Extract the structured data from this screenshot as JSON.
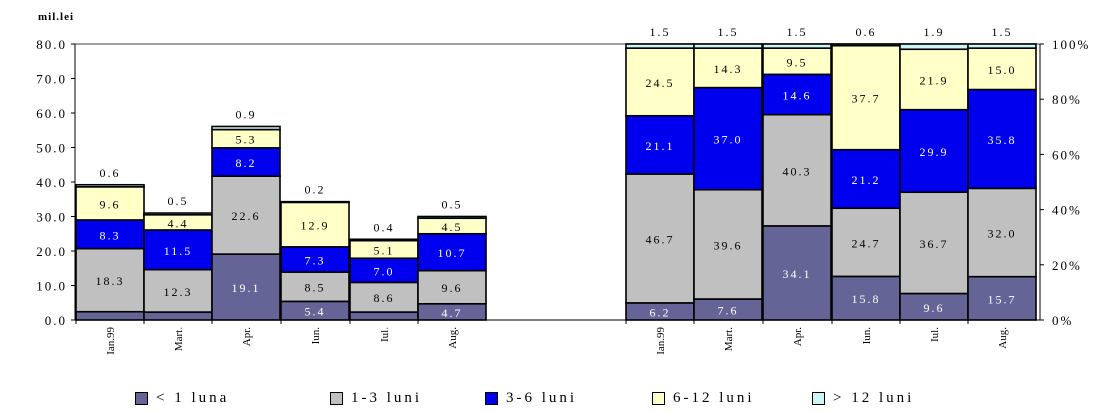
{
  "chart_data": [
    {
      "type": "bar",
      "stacked": true,
      "unit_label": "mil.lei",
      "categories": [
        "Ian.99",
        "Mart.",
        "Apr.",
        "Iun.",
        "Iul.",
        "Aug."
      ],
      "ylim": [
        0,
        80
      ],
      "yticks": [
        "0.0",
        "10.0",
        "20.0",
        "30.0",
        "40.0",
        "50.0",
        "60.0",
        "70.0",
        "80.0"
      ],
      "series": [
        {
          "name": "< 1 luna",
          "values": [
            2.4,
            2.3,
            19.1,
            5.4,
            2.3,
            4.7
          ],
          "labels": [
            "2.4",
            "2.3",
            "19.1",
            "5.4",
            "2.3",
            "4.7"
          ],
          "color": "#646496",
          "text_color": "#ffffff"
        },
        {
          "name": "1-3 luni",
          "values": [
            18.3,
            12.3,
            22.6,
            8.5,
            8.6,
            9.6
          ],
          "labels": [
            "18.3",
            "12.3",
            "22.6",
            "8.5",
            "8.6",
            "9.6"
          ],
          "color": "#c0c0c0",
          "text_color": "#000000"
        },
        {
          "name": "3-6 luni",
          "values": [
            8.3,
            11.5,
            8.2,
            7.3,
            7.0,
            10.7
          ],
          "labels": [
            "8.3",
            "11.5",
            "8.2",
            "7.3",
            "7.0",
            "10.7"
          ],
          "color": "#0000ee",
          "text_color": "#ffffff"
        },
        {
          "name": "6-12 luni",
          "values": [
            9.6,
            4.4,
            5.3,
            12.9,
            5.1,
            4.5
          ],
          "labels": [
            "9.6",
            "4.4",
            "5.3",
            "12.9",
            "5.1",
            "4.5"
          ],
          "color": "#ffffc8",
          "text_color": "#000000"
        },
        {
          "name": "> 12 luni",
          "values": [
            0.6,
            0.5,
            0.9,
            0.2,
            0.4,
            0.5
          ],
          "labels": [
            "0.6",
            "0.5",
            "0.9",
            "0.2",
            "0.4",
            "0.5"
          ],
          "color": "#ccf5f5",
          "text_color": "#000000"
        }
      ]
    },
    {
      "type": "bar",
      "stacked": true,
      "percent": true,
      "categories": [
        "Ian.99",
        "Mart.",
        "Apr.",
        "Iun.",
        "Iul.",
        "Aug."
      ],
      "ylim": [
        0,
        100
      ],
      "yticks": [
        "0%",
        "20%",
        "40%",
        "60%",
        "80%",
        "100%"
      ],
      "series": [
        {
          "name": "< 1 luna",
          "values": [
            6.2,
            7.6,
            34.1,
            15.8,
            9.6,
            15.7
          ],
          "labels": [
            "6.2",
            "7.6",
            "34.1",
            "15.8",
            "9.6",
            "15.7"
          ],
          "color": "#646496",
          "text_color": "#ffffff"
        },
        {
          "name": "1-3 luni",
          "values": [
            46.7,
            39.6,
            40.3,
            24.7,
            36.7,
            32.0
          ],
          "labels": [
            "46.7",
            "39.6",
            "40.3",
            "24.7",
            "36.7",
            "32.0"
          ],
          "color": "#c0c0c0",
          "text_color": "#000000"
        },
        {
          "name": "3-6 luni",
          "values": [
            21.1,
            37.0,
            14.6,
            21.2,
            29.9,
            35.8
          ],
          "labels": [
            "21.1",
            "37.0",
            "14.6",
            "21.2",
            "29.9",
            "35.8"
          ],
          "color": "#0000ee",
          "text_color": "#ffffff"
        },
        {
          "name": "6-12 luni",
          "values": [
            24.5,
            14.3,
            9.5,
            37.7,
            21.9,
            15.0
          ],
          "labels": [
            "24.5",
            "14.3",
            "9.5",
            "37.7",
            "21.9",
            "15.0"
          ],
          "color": "#ffffc8",
          "text_color": "#000000"
        },
        {
          "name": "> 12 luni",
          "values": [
            1.5,
            1.5,
            1.5,
            0.6,
            1.9,
            1.5
          ],
          "labels": [
            "1.5",
            "1.5",
            "1.5",
            "0.6",
            "1.9",
            "1.5"
          ],
          "color": "#ccf5f5",
          "text_color": "#000000"
        }
      ]
    }
  ],
  "legend": {
    "items": [
      {
        "label": "< 1 luna",
        "color": "#646496"
      },
      {
        "label": "1-3 luni",
        "color": "#c0c0c0"
      },
      {
        "label": "3-6 luni",
        "color": "#0000ee"
      },
      {
        "label": "6-12 luni",
        "color": "#ffffc8"
      },
      {
        "label": "> 12 luni",
        "color": "#ccf5f5"
      }
    ]
  }
}
